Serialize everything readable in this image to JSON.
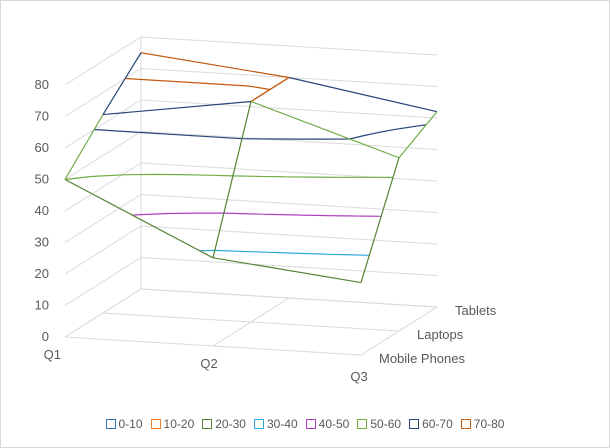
{
  "chart_data": {
    "type": "surface-3d",
    "title": "",
    "x_categories": [
      "Q1",
      "Q2",
      "Q3"
    ],
    "depth_categories": [
      "Mobile Phones",
      "Laptops",
      "Tablets"
    ],
    "z_ticks": [
      "0",
      "10",
      "20",
      "30",
      "40",
      "50",
      "60",
      "70",
      "80"
    ],
    "zlim": [
      0,
      80
    ],
    "surface_values": [
      [
        50,
        28,
        23
      ],
      [
        63,
        70,
        55
      ],
      [
        75,
        70,
        62
      ]
    ],
    "legend": [
      {
        "label": "0-10",
        "color": "#2E75B6"
      },
      {
        "label": "10-20",
        "color": "#ED7D31"
      },
      {
        "label": "20-30",
        "color": "#548235"
      },
      {
        "label": "30-40",
        "color": "#2EA7DD"
      },
      {
        "label": "40-50",
        "color": "#B040C0"
      },
      {
        "label": "50-60",
        "color": "#70AD47"
      },
      {
        "label": "60-70",
        "color": "#264478"
      },
      {
        "label": "70-80",
        "color": "#C55A11"
      }
    ],
    "legend_position": "bottom",
    "grid": true
  }
}
